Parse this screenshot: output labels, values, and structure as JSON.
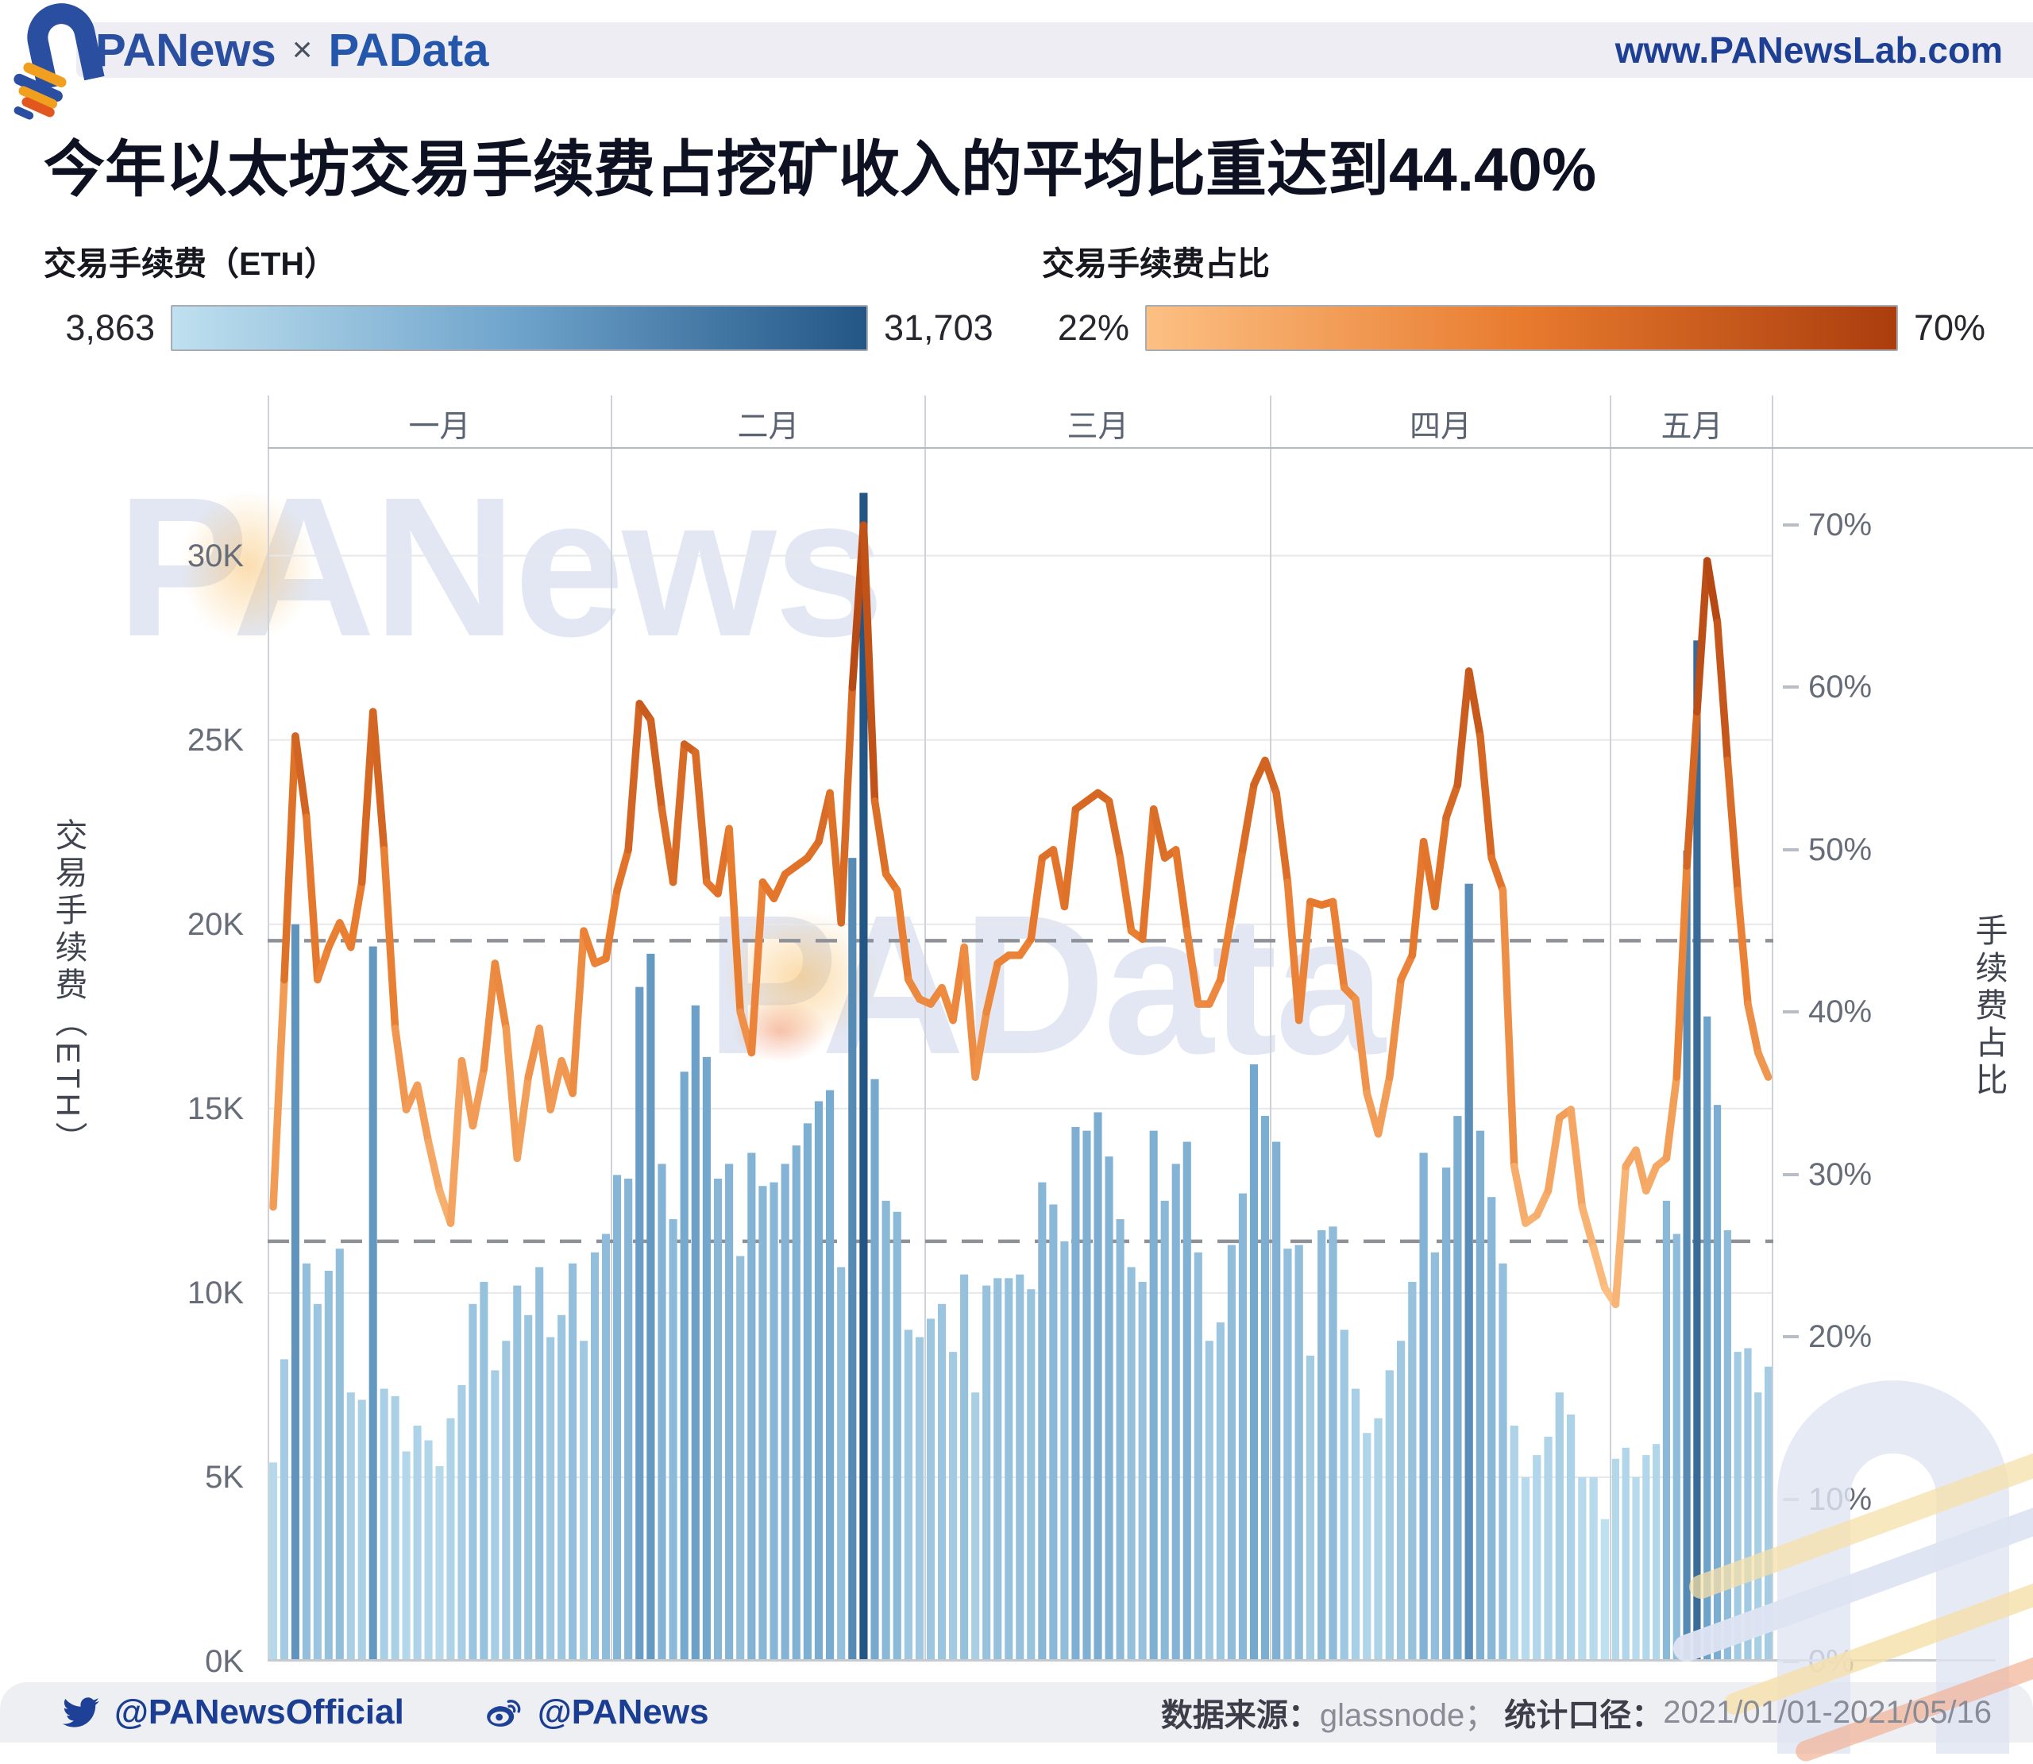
{
  "header": {
    "brand_primary": "PANews",
    "brand_separator": "×",
    "brand_secondary": "PAData",
    "site_url": "www.PANewsLab.com"
  },
  "page_title": "今年以太坊交易手续费占挖矿收入的平均比重达到44.40%",
  "legends": {
    "fee": {
      "label": "交易手续费（ETH）",
      "min_label": "3,863",
      "max_label": "31,703",
      "color_low": "#bfe0ef",
      "color_mid": "#6ea3cb",
      "color_high": "#235685"
    },
    "pct": {
      "label": "交易手续费占比",
      "min_label": "22%",
      "max_label": "70%",
      "color_low": "#fcc083",
      "color_mid": "#e87b2e",
      "color_high": "#ab3d0e"
    }
  },
  "watermarks": {
    "primary": "PANews",
    "secondary": "PAData"
  },
  "footer": {
    "twitter_handle": "@PANewsOfficial",
    "weibo_handle": "@PANews",
    "source_label": "数据来源：",
    "source_value": "glassnode；",
    "scope_label": "统计口径：",
    "scope_value": "2021/01/01-2021/05/16"
  },
  "chart_data": {
    "type": "bar+line",
    "title": "今年以太坊交易手续费占挖矿收入的平均比重达到44.40%",
    "months": [
      {
        "label": "一月",
        "days": 31
      },
      {
        "label": "二月",
        "days": 28
      },
      {
        "label": "三月",
        "days": 31
      },
      {
        "label": "四月",
        "days": 30
      },
      {
        "label": "五月",
        "days": 16
      }
    ],
    "left_axis": {
      "title": "交易手续费（ETH）",
      "max": 32900,
      "tick_labels": [
        "30K",
        "25K",
        "20K",
        "15K",
        "10K",
        "5K",
        "0K"
      ],
      "tick_values": [
        30000,
        25000,
        20000,
        15000,
        10000,
        5000,
        0
      ]
    },
    "right_axis": {
      "title": "手续费占比",
      "max": 74.7,
      "tick_labels": [
        "70%",
        "60%",
        "50%",
        "40%",
        "30%",
        "20%",
        "10%",
        "0%"
      ],
      "tick_values": [
        70,
        60,
        50,
        40,
        30,
        20,
        10,
        0
      ]
    },
    "reference_lines": [
      {
        "axis": "right",
        "value": 44.4,
        "meaning": "平均手续费占比 44.40%"
      },
      {
        "axis": "left",
        "value": 11400,
        "meaning": "平均交易手续费（ETH）"
      }
    ],
    "series": [
      {
        "name": "交易手续费（ETH）",
        "type": "bar",
        "unit": "ETH",
        "values": [
          5400,
          8200,
          20000,
          10800,
          9700,
          10600,
          11200,
          7300,
          7100,
          19400,
          7400,
          7200,
          5700,
          6400,
          6000,
          5300,
          6600,
          7500,
          9700,
          10300,
          7900,
          8700,
          10200,
          9400,
          10700,
          8800,
          9400,
          10800,
          8700,
          11100,
          11600,
          13200,
          13100,
          18300,
          19200,
          13500,
          12000,
          16000,
          17800,
          16400,
          13100,
          13500,
          11000,
          13800,
          12900,
          13000,
          13500,
          14000,
          14600,
          15200,
          15500,
          10700,
          21800,
          31703,
          15800,
          12500,
          12200,
          9000,
          8800,
          9300,
          9700,
          8400,
          10500,
          7300,
          10200,
          10400,
          10400,
          10500,
          10100,
          13000,
          12400,
          11400,
          14500,
          14400,
          14900,
          13700,
          12000,
          10700,
          10300,
          14400,
          12500,
          13500,
          14100,
          11100,
          8700,
          9200,
          11300,
          12700,
          16200,
          14800,
          14100,
          11200,
          11300,
          8300,
          11700,
          11800,
          9000,
          7400,
          6200,
          6600,
          7900,
          8700,
          10300,
          13800,
          11100,
          13400,
          14800,
          21100,
          14400,
          12600,
          10800,
          6400,
          5000,
          5600,
          6100,
          7300,
          6700,
          5000,
          5000,
          3863,
          5500,
          5800,
          5000,
          5600,
          5900,
          12500,
          11600,
          22000,
          27700,
          17500,
          15100,
          11700,
          8400,
          8500,
          7300,
          8000
        ]
      },
      {
        "name": "交易手续费占比",
        "type": "line",
        "unit": "%",
        "values": [
          28,
          42,
          57,
          52,
          42,
          44,
          45.5,
          44,
          48,
          58.5,
          50,
          39,
          34,
          35.5,
          32,
          29,
          27,
          37,
          33,
          36.5,
          43,
          39,
          31,
          36,
          39,
          34,
          37,
          35,
          45,
          43,
          43.3,
          47.5,
          50,
          59,
          58,
          52.5,
          48,
          56.5,
          56,
          48,
          47.3,
          51.3,
          40,
          37.5,
          48,
          47,
          48.5,
          49,
          49.5,
          50.5,
          53.5,
          45.5,
          60,
          70,
          53,
          48.5,
          47.5,
          42,
          40.8,
          40.5,
          41.5,
          39.5,
          44,
          36,
          40,
          43,
          43.5,
          43.5,
          44.5,
          49.5,
          50,
          46.5,
          52.5,
          53,
          53.5,
          53,
          49.5,
          45,
          44.5,
          52.5,
          49.5,
          50,
          45,
          40.5,
          40.5,
          42,
          46,
          50,
          54,
          55.5,
          53.5,
          48,
          39.5,
          46.8,
          46.6,
          46.8,
          41.5,
          40.8,
          35,
          32.5,
          36,
          42,
          43.5,
          50.5,
          46.5,
          52,
          54,
          61,
          57,
          49.5,
          47.5,
          30.5,
          27,
          27.5,
          29,
          33.5,
          34,
          28,
          25.5,
          23,
          22,
          30.5,
          31.5,
          29,
          30.5,
          31,
          36,
          49,
          58.5,
          67.8,
          64,
          55.5,
          47.5,
          40.5,
          37.5,
          36
        ]
      }
    ]
  }
}
